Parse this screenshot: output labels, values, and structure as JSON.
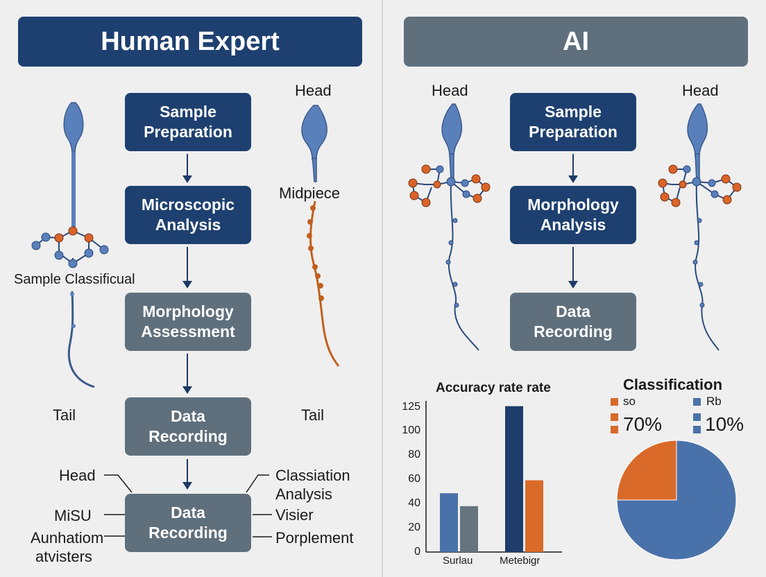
{
  "left": {
    "title": "Human Expert",
    "steps": [
      "Sample\nPreparation",
      "Microscopic\nAnalysis",
      "Morphology\nAssessment",
      "Data\nRecording",
      "Data\nRecording"
    ],
    "labels": {
      "sample_classificual": "Sample Classificual",
      "tail_left": "Tail",
      "head_right": "Head",
      "midpiece": "Midpiece",
      "tail_right": "Tail"
    },
    "callouts_left": [
      "Head",
      "MiSU",
      "Aunhatiom",
      "atvisters"
    ],
    "callouts_right": [
      "Classiation",
      "Analysis",
      "Visier",
      "Porplement"
    ]
  },
  "right": {
    "title": "AI",
    "steps": [
      "Sample\nPreparation",
      "Morphology\nAnalysis",
      "Data\nRecording"
    ],
    "labels": {
      "head_left": "Head",
      "head_right": "Head"
    }
  },
  "colors": {
    "navy": "#1e4070",
    "slate": "#5f6f7c",
    "orange": "#d96a2a",
    "blue": "#4a72aa",
    "sperm_blue": "#5a80bb"
  },
  "chart_data": [
    {
      "type": "bar",
      "title": "Accuracy rate rate",
      "categories": [
        "Surlau",
        "Metebigr"
      ],
      "series": [
        {
          "color": "#4a72aa",
          "values": [
            50,
            124
          ]
        },
        {
          "color": "#667480",
          "values": [
            39,
            null
          ]
        },
        {
          "color": "#1e3d6a",
          "values": [
            null,
            124
          ]
        },
        {
          "color": "#d96a2a",
          "values": [
            null,
            61
          ]
        }
      ],
      "bars": [
        {
          "category": "Surlau",
          "value": 50,
          "color": "#4a72aa"
        },
        {
          "category": "Surlau",
          "value": 39,
          "color": "#667480"
        },
        {
          "category": "Metebigr",
          "value": 124,
          "color": "#1e3d6a"
        },
        {
          "category": "Metebigr",
          "value": 61,
          "color": "#d96a2a"
        }
      ],
      "yticks": [
        0,
        20,
        40,
        60,
        80,
        100,
        125
      ],
      "ylim": [
        0,
        125
      ]
    },
    {
      "type": "pie",
      "title": "Classification",
      "legend": [
        {
          "label": "so",
          "color": "#d96a2a"
        },
        {
          "label": "Rb",
          "color": "#4a72aa"
        },
        {
          "label": "70%",
          "color": "#d96a2a"
        },
        {
          "label": "10%",
          "color": "#4a72aa"
        }
      ],
      "slices": [
        {
          "value": 25,
          "color": "#d96a2a"
        },
        {
          "value": 75,
          "color": "#4a72aa"
        }
      ]
    }
  ]
}
